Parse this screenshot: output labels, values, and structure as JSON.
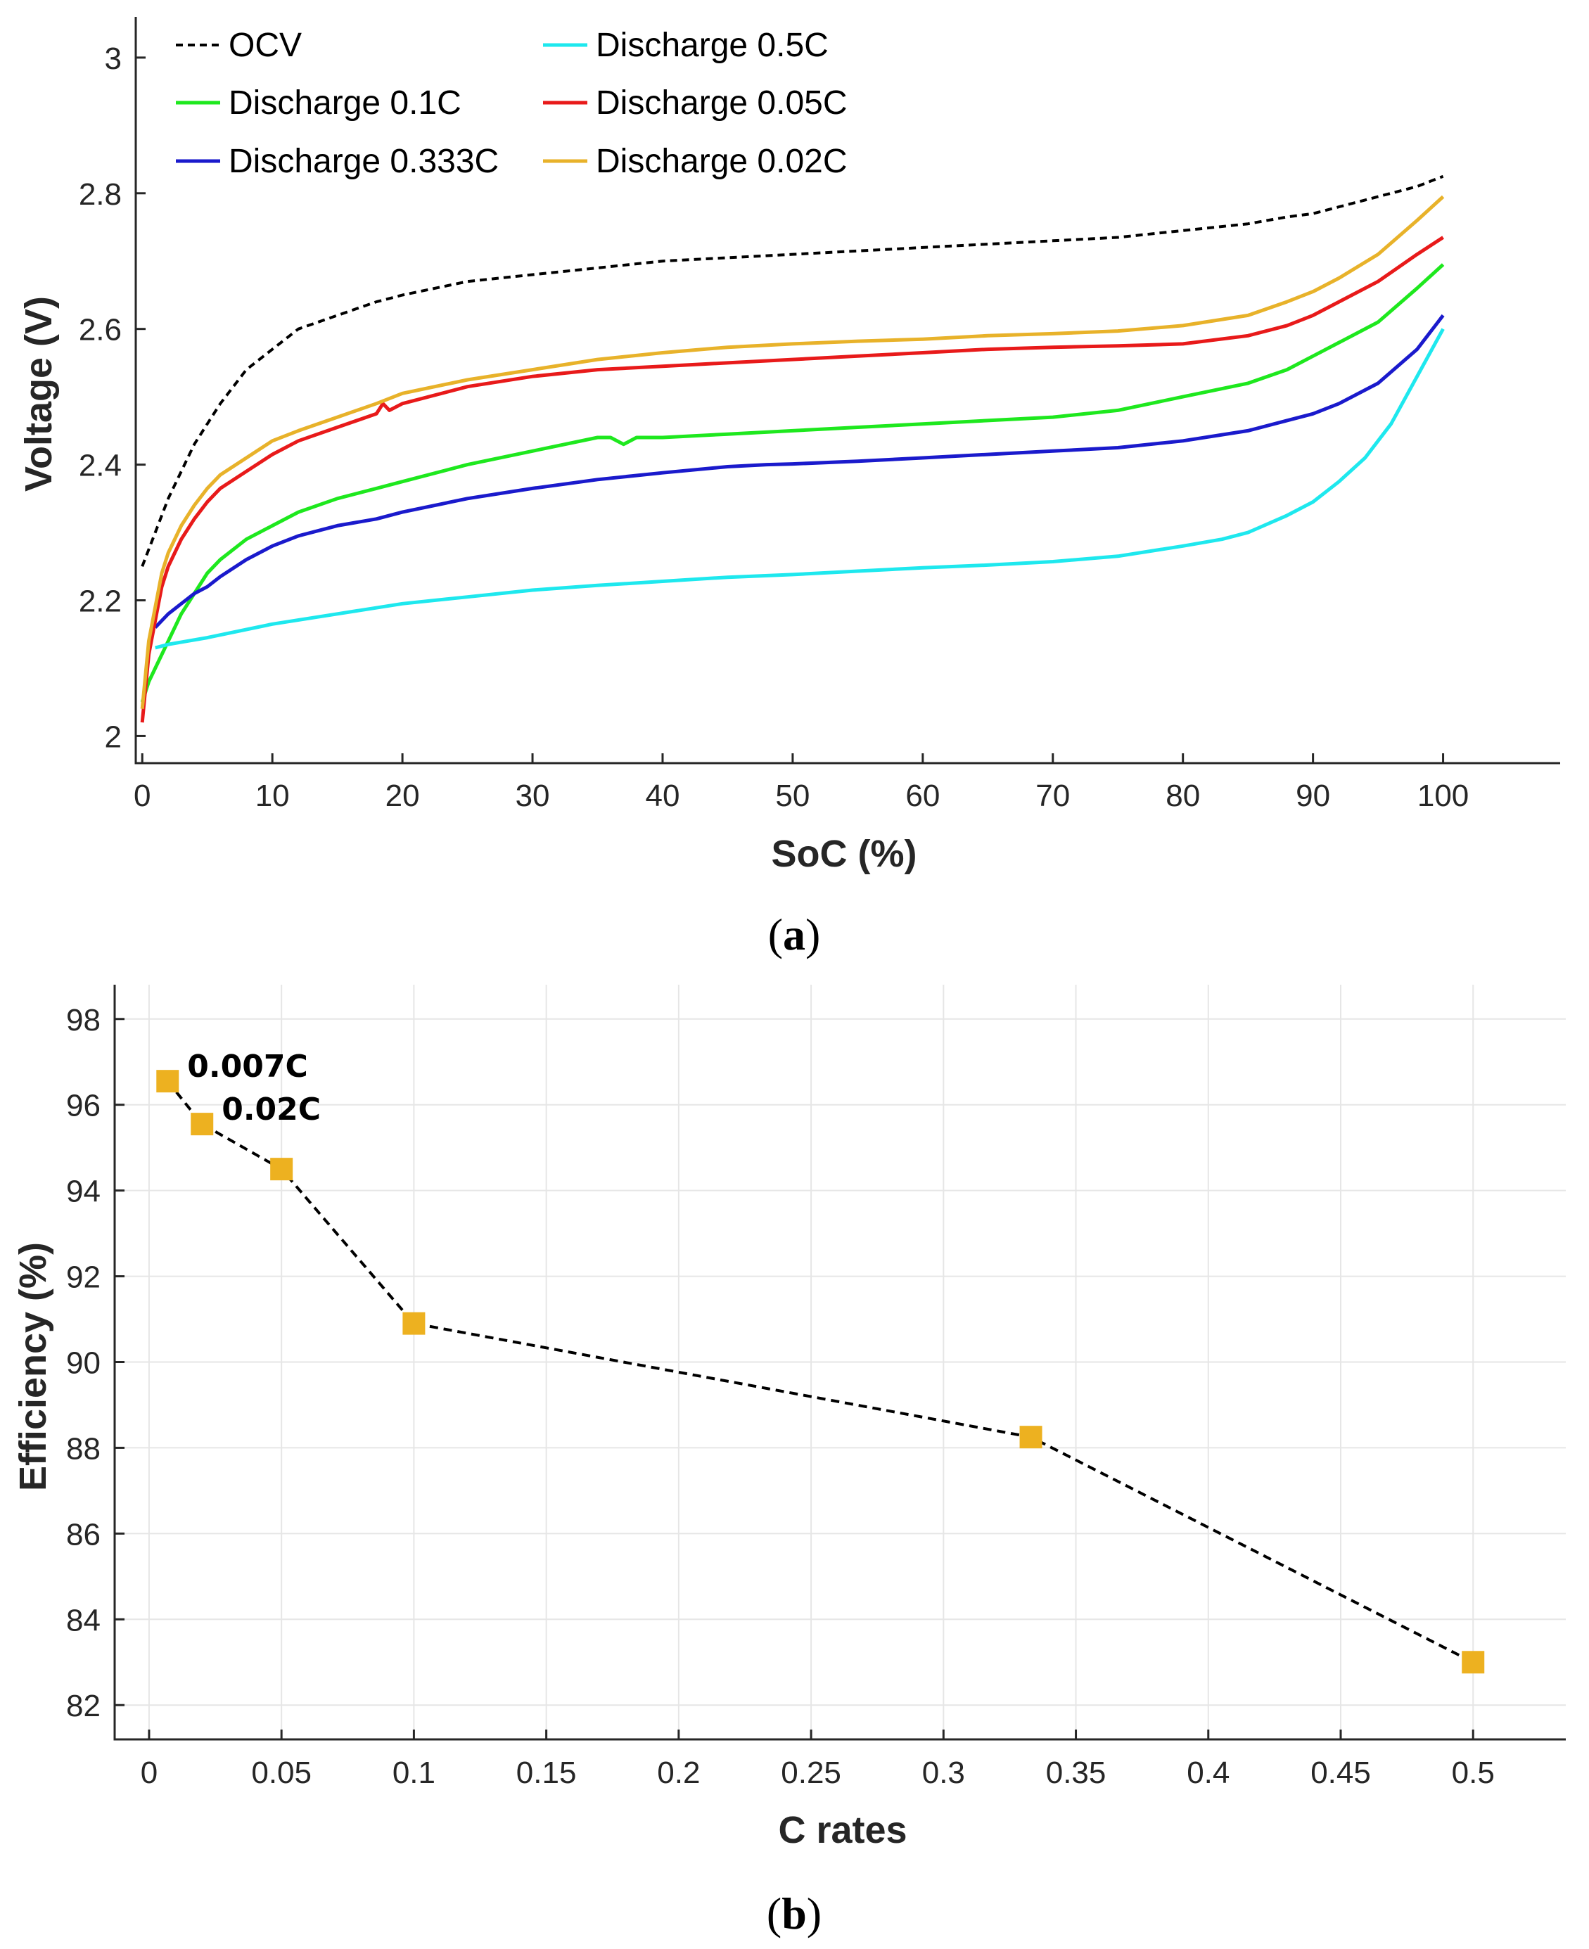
{
  "chart_data": [
    {
      "type": "line",
      "xlabel": "SoC (%)",
      "ylabel": "Voltage (V)",
      "xlim": [
        -0.5,
        109
      ],
      "ylim": [
        1.96,
        3.06
      ],
      "xticks": [
        "0",
        "10",
        "20",
        "30",
        "40",
        "50",
        "60",
        "70",
        "80",
        "90",
        "100"
      ],
      "yticks": [
        "2",
        "2.2",
        "2.4",
        "2.6",
        "2.8",
        "3"
      ],
      "grid": false,
      "legend": "top-left",
      "caption_prefix": "(",
      "caption_letter": "a",
      "caption_suffix": ")",
      "series": [
        {
          "name": "OCV",
          "color": "#000000",
          "dash": true,
          "x": [
            0,
            1,
            2,
            3,
            4,
            5,
            6,
            8,
            10,
            12,
            15,
            18,
            20,
            25,
            30,
            35,
            40,
            45,
            50,
            55,
            60,
            65,
            70,
            75,
            80,
            85,
            88,
            90,
            92,
            95,
            98,
            100
          ],
          "y": [
            2.25,
            2.3,
            2.35,
            2.39,
            2.43,
            2.46,
            2.49,
            2.54,
            2.57,
            2.6,
            2.62,
            2.64,
            2.65,
            2.67,
            2.68,
            2.69,
            2.7,
            2.705,
            2.71,
            2.715,
            2.72,
            2.725,
            2.73,
            2.735,
            2.745,
            2.755,
            2.765,
            2.77,
            2.78,
            2.795,
            2.81,
            2.825
          ]
        },
        {
          "name": "Discharge 0.1C",
          "color": "#1ee81e",
          "dash": false,
          "x": [
            0,
            0.5,
            1,
            2,
            3,
            4,
            5,
            6,
            8,
            10,
            12,
            15,
            18,
            20,
            25,
            30,
            35,
            36,
            37,
            38,
            40,
            45,
            50,
            55,
            60,
            65,
            70,
            75,
            80,
            85,
            88,
            90,
            92,
            95,
            98,
            100
          ],
          "y": [
            2.05,
            2.08,
            2.1,
            2.14,
            2.18,
            2.21,
            2.24,
            2.26,
            2.29,
            2.31,
            2.33,
            2.35,
            2.365,
            2.375,
            2.4,
            2.42,
            2.44,
            2.44,
            2.43,
            2.44,
            2.44,
            2.445,
            2.45,
            2.455,
            2.46,
            2.465,
            2.47,
            2.48,
            2.5,
            2.52,
            2.54,
            2.56,
            2.58,
            2.61,
            2.66,
            2.695
          ]
        },
        {
          "name": "Discharge 0.333C",
          "color": "#1a1acc",
          "dash": false,
          "x": [
            1,
            2,
            3,
            4,
            5,
            6,
            8,
            10,
            12,
            15,
            18,
            20,
            25,
            30,
            35,
            40,
            45,
            48,
            50,
            55,
            60,
            65,
            70,
            75,
            80,
            85,
            88,
            90,
            92,
            95,
            98,
            100
          ],
          "y": [
            2.16,
            2.18,
            2.195,
            2.21,
            2.22,
            2.235,
            2.26,
            2.28,
            2.295,
            2.31,
            2.32,
            2.33,
            2.35,
            2.365,
            2.378,
            2.388,
            2.397,
            2.4,
            2.401,
            2.405,
            2.41,
            2.415,
            2.42,
            2.425,
            2.435,
            2.45,
            2.465,
            2.475,
            2.49,
            2.52,
            2.57,
            2.62
          ]
        },
        {
          "name": "Discharge 0.5C",
          "color": "#1ee8ee",
          "dash": false,
          "x": [
            1,
            2,
            5,
            10,
            15,
            20,
            25,
            30,
            35,
            40,
            45,
            50,
            55,
            60,
            65,
            70,
            75,
            80,
            83,
            85,
            88,
            90,
            92,
            94,
            96,
            98,
            100
          ],
          "y": [
            2.13,
            2.135,
            2.145,
            2.165,
            2.18,
            2.195,
            2.205,
            2.215,
            2.222,
            2.228,
            2.234,
            2.238,
            2.243,
            2.248,
            2.252,
            2.257,
            2.265,
            2.28,
            2.29,
            2.3,
            2.325,
            2.345,
            2.375,
            2.41,
            2.46,
            2.53,
            2.6
          ]
        },
        {
          "name": "Discharge 0.05C",
          "color": "#e81a1a",
          "dash": false,
          "x": [
            0,
            0.5,
            1,
            1.5,
            2,
            3,
            4,
            5,
            6,
            8,
            10,
            12,
            15,
            18,
            18.5,
            19,
            20,
            25,
            30,
            35,
            40,
            45,
            50,
            55,
            60,
            65,
            70,
            75,
            80,
            85,
            88,
            90,
            92,
            95,
            98,
            100
          ],
          "y": [
            2.02,
            2.12,
            2.17,
            2.22,
            2.25,
            2.29,
            2.32,
            2.345,
            2.365,
            2.39,
            2.415,
            2.435,
            2.455,
            2.475,
            2.49,
            2.48,
            2.49,
            2.515,
            2.53,
            2.54,
            2.545,
            2.55,
            2.555,
            2.56,
            2.565,
            2.57,
            2.573,
            2.575,
            2.578,
            2.59,
            2.605,
            2.62,
            2.64,
            2.67,
            2.71,
            2.735
          ]
        },
        {
          "name": "Discharge 0.02C",
          "color": "#e8b22a",
          "dash": false,
          "x": [
            0,
            0.5,
            1,
            1.5,
            2,
            3,
            4,
            5,
            6,
            8,
            10,
            12,
            15,
            18,
            20,
            25,
            30,
            35,
            40,
            45,
            50,
            55,
            60,
            65,
            70,
            75,
            80,
            85,
            88,
            90,
            92,
            95,
            98,
            100
          ],
          "y": [
            2.04,
            2.14,
            2.19,
            2.24,
            2.27,
            2.31,
            2.34,
            2.365,
            2.385,
            2.41,
            2.435,
            2.45,
            2.47,
            2.49,
            2.505,
            2.525,
            2.54,
            2.555,
            2.565,
            2.573,
            2.578,
            2.582,
            2.585,
            2.59,
            2.593,
            2.597,
            2.605,
            2.62,
            2.64,
            2.655,
            2.675,
            2.71,
            2.76,
            2.795
          ]
        }
      ]
    },
    {
      "type": "scatter",
      "xlabel": "C rates",
      "ylabel": "Efficiency (%)",
      "xlim": [
        -0.013,
        0.535
      ],
      "ylim": [
        81.2,
        98.8
      ],
      "xticks": [
        "0",
        "0.05",
        "0.1",
        "0.15",
        "0.2",
        "0.25",
        "0.3",
        "0.35",
        "0.4",
        "0.45",
        "0.5"
      ],
      "yticks": [
        "82",
        "84",
        "86",
        "88",
        "90",
        "92",
        "94",
        "96",
        "98"
      ],
      "grid": true,
      "marker": "square",
      "marker_color": "#edb120",
      "line": "black dashed",
      "caption_prefix": "(",
      "caption_letter": "b",
      "caption_suffix": ")",
      "x": [
        0.007,
        0.02,
        0.05,
        0.1,
        0.333,
        0.5
      ],
      "y": [
        96.55,
        95.55,
        94.5,
        90.9,
        88.25,
        83.0
      ],
      "annotations": [
        {
          "text": "0.007C",
          "x": 0.007,
          "y": 96.55
        },
        {
          "text": "0.02C",
          "x": 0.02,
          "y": 95.55
        }
      ]
    }
  ]
}
